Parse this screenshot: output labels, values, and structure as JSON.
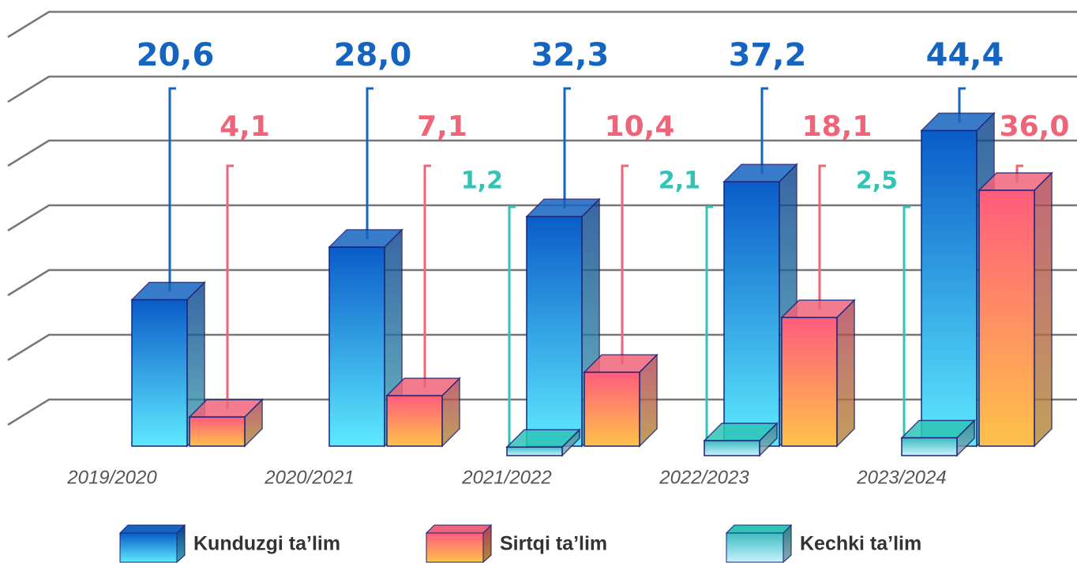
{
  "chart_data": {
    "type": "bar3d",
    "categories": [
      "2019/2020",
      "2020/2021",
      "2021/2022",
      "2022/2023",
      "2023/2024"
    ],
    "series": [
      {
        "name": "Kunduzgi ta’lim",
        "color": "#1565c0",
        "values": [
          20.6,
          28.0,
          32.3,
          37.2,
          44.4
        ],
        "value_labels": [
          "20,6",
          "28,0",
          "32,3",
          "37,2",
          "44,4"
        ]
      },
      {
        "name": "Sirtqi ta’lim",
        "color": "#f0647a",
        "values": [
          4.1,
          7.1,
          10.4,
          18.1,
          36.0
        ],
        "value_labels": [
          "4,1",
          "7,1",
          "10,4",
          "18,1",
          "36,0"
        ]
      },
      {
        "name": "Kechki ta’lim",
        "color": "#2ec4b6",
        "values": [
          null,
          null,
          1.2,
          2.1,
          2.5
        ],
        "value_labels": [
          null,
          null,
          "1,2",
          "2,1",
          "2,5"
        ]
      }
    ],
    "ylim": [
      0,
      50
    ],
    "grid": true
  }
}
